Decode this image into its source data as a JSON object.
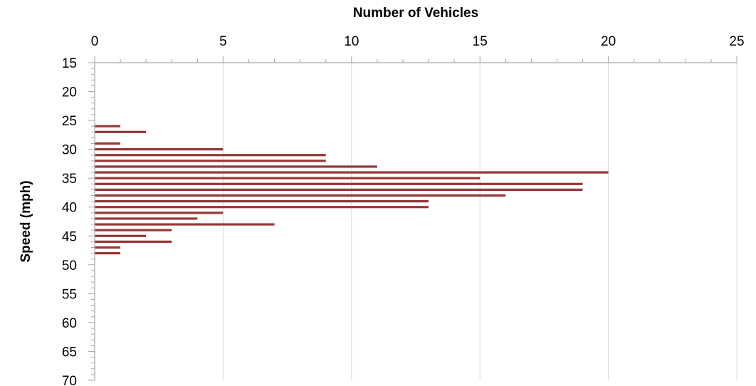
{
  "chart_data": {
    "type": "bar",
    "orientation": "horizontal",
    "xlabel": "Number of Vehicles",
    "ylabel": "Speed (mph)",
    "xlim": [
      0,
      25
    ],
    "ylim": [
      15,
      70
    ],
    "y_inverted": true,
    "x_axis_position": "top",
    "x_ticks": [
      0,
      5,
      10,
      15,
      20,
      25
    ],
    "y_ticks": [
      15,
      20,
      25,
      30,
      35,
      40,
      45,
      50,
      55,
      60,
      65,
      70
    ],
    "gridlines": "vertical",
    "bar_color": "#953735",
    "series": [
      {
        "speeds": [
          26,
          27,
          28,
          29,
          30,
          31,
          32,
          33,
          34,
          35,
          36,
          37,
          38,
          39,
          40,
          41,
          42,
          43,
          44,
          45,
          46,
          47,
          48
        ],
        "values": [
          1,
          2,
          0,
          1,
          5,
          9,
          9,
          11,
          20,
          15,
          19,
          19,
          16,
          13,
          13,
          5,
          4,
          7,
          3,
          2,
          3,
          1,
          1
        ]
      }
    ]
  }
}
